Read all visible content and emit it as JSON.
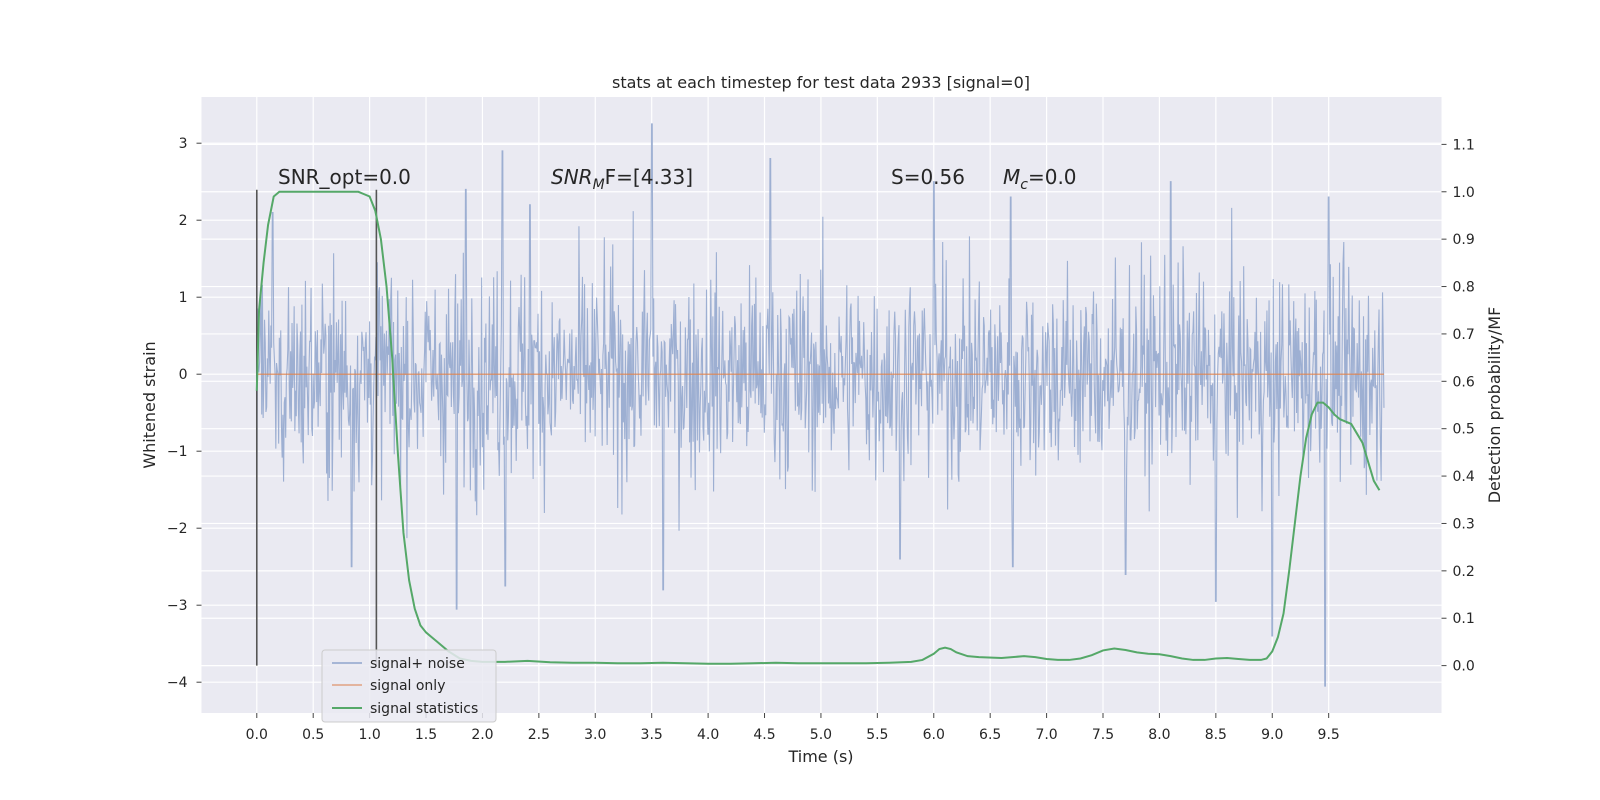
{
  "chart_data": {
    "type": "line",
    "title": "stats at each timestep for test data 2933 [signal=0]",
    "xlabel": "Time (s)",
    "ylabel": "Whitened strain",
    "y2label": "Detection probability/MF",
    "xlim": [
      -0.49,
      10.5
    ],
    "ylim": [
      -4.4,
      3.6
    ],
    "y2lim": [
      -0.1,
      1.2
    ],
    "xticks": [
      "0.0",
      "0.5",
      "1.0",
      "1.5",
      "2.0",
      "2.5",
      "3.0",
      "3.5",
      "4.0",
      "4.5",
      "5.0",
      "5.5",
      "6.0",
      "6.5",
      "7.0",
      "7.5",
      "8.0",
      "8.5",
      "9.0",
      "9.5"
    ],
    "yticks": [
      "3",
      "2",
      "1",
      "0",
      "−1",
      "−2",
      "−3",
      "−4"
    ],
    "y2ticks": [
      "1.1",
      "1.0",
      "0.9",
      "0.8",
      "0.7",
      "0.6",
      "0.5",
      "0.4",
      "0.3",
      "0.2",
      "0.1",
      "0.0"
    ],
    "grid": true,
    "legend_position": "lower-left",
    "annotations": {
      "snr_opt": "SNR_opt=0.0",
      "snr_mf_main": "SNR",
      "snr_mf_sub": "M",
      "snr_mf_tail": "F=[4.33]",
      "s_value": "S=0.56",
      "mc_main": "M",
      "mc_sub": "c",
      "mc_tail": "=0.0"
    },
    "vlines": [
      0.0,
      1.06
    ],
    "series": [
      {
        "name": "signal+ noise",
        "color": "#8fa5cd",
        "note_type": "noise",
        "x_range": [
          0.0,
          9.99
        ],
        "noise_envelope_peaks": [
          {
            "x": 0.14,
            "y": 2.1
          },
          {
            "x": 1.85,
            "y": 2.4
          },
          {
            "x": 2.18,
            "y": 2.9
          },
          {
            "x": 2.42,
            "y": 2.2
          },
          {
            "x": 3.5,
            "y": 3.25
          },
          {
            "x": 4.55,
            "y": 2.8
          },
          {
            "x": 6.0,
            "y": 2.5
          },
          {
            "x": 6.68,
            "y": 2.3
          },
          {
            "x": 8.1,
            "y": 2.5
          },
          {
            "x": 9.0,
            "y": 2.6
          },
          {
            "x": 9.5,
            "y": 2.3
          }
        ],
        "noise_envelope_troughs": [
          {
            "x": 0.0,
            "y": -2.2
          },
          {
            "x": 0.84,
            "y": -2.5
          },
          {
            "x": 1.77,
            "y": -3.05
          },
          {
            "x": 2.2,
            "y": -2.75
          },
          {
            "x": 3.6,
            "y": -2.8
          },
          {
            "x": 5.7,
            "y": -2.4
          },
          {
            "x": 6.7,
            "y": -2.5
          },
          {
            "x": 7.7,
            "y": -2.6
          },
          {
            "x": 8.5,
            "y": -2.95
          },
          {
            "x": 9.0,
            "y": -3.4
          },
          {
            "x": 9.47,
            "y": -4.05
          }
        ]
      },
      {
        "name": "signal only",
        "color": "#dd8452",
        "x": [
          0.0,
          9.99
        ],
        "y": [
          0.0,
          0.0
        ]
      },
      {
        "name": "signal statistics",
        "color": "#55a868",
        "axis": "right",
        "x": [
          0.0,
          0.02,
          0.06,
          0.1,
          0.15,
          0.2,
          0.25,
          0.3,
          0.4,
          0.5,
          0.6,
          0.7,
          0.8,
          0.9,
          0.95,
          1.0,
          1.05,
          1.1,
          1.15,
          1.2,
          1.25,
          1.3,
          1.35,
          1.4,
          1.45,
          1.5,
          1.6,
          1.7,
          1.8,
          1.9,
          2.0,
          2.2,
          2.4,
          2.6,
          2.8,
          3.0,
          3.2,
          3.4,
          3.6,
          3.8,
          4.0,
          4.2,
          4.4,
          4.6,
          4.8,
          5.0,
          5.2,
          5.4,
          5.6,
          5.8,
          5.9,
          6.0,
          6.05,
          6.1,
          6.15,
          6.2,
          6.3,
          6.4,
          6.6,
          6.8,
          6.9,
          7.0,
          7.1,
          7.2,
          7.3,
          7.4,
          7.5,
          7.6,
          7.7,
          7.8,
          7.9,
          8.0,
          8.1,
          8.2,
          8.3,
          8.4,
          8.5,
          8.6,
          8.7,
          8.8,
          8.9,
          8.95,
          9.0,
          9.05,
          9.1,
          9.15,
          9.2,
          9.25,
          9.3,
          9.35,
          9.4,
          9.45,
          9.5,
          9.55,
          9.6,
          9.7,
          9.75,
          9.8,
          9.85,
          9.9,
          9.95
        ],
        "y": [
          0.58,
          0.75,
          0.85,
          0.93,
          0.99,
          1.0,
          1.0,
          1.0,
          1.0,
          1.0,
          1.0,
          1.0,
          1.0,
          1.0,
          0.995,
          0.99,
          0.96,
          0.9,
          0.8,
          0.65,
          0.45,
          0.28,
          0.18,
          0.12,
          0.085,
          0.07,
          0.05,
          0.03,
          0.015,
          0.01,
          0.008,
          0.008,
          0.01,
          0.007,
          0.006,
          0.006,
          0.005,
          0.005,
          0.006,
          0.005,
          0.004,
          0.004,
          0.005,
          0.006,
          0.005,
          0.005,
          0.005,
          0.005,
          0.006,
          0.008,
          0.012,
          0.025,
          0.035,
          0.038,
          0.035,
          0.028,
          0.02,
          0.018,
          0.016,
          0.02,
          0.018,
          0.014,
          0.012,
          0.012,
          0.015,
          0.022,
          0.032,
          0.036,
          0.033,
          0.028,
          0.025,
          0.024,
          0.02,
          0.015,
          0.012,
          0.012,
          0.015,
          0.016,
          0.014,
          0.012,
          0.012,
          0.015,
          0.03,
          0.06,
          0.11,
          0.2,
          0.3,
          0.4,
          0.48,
          0.53,
          0.555,
          0.555,
          0.545,
          0.53,
          0.52,
          0.51,
          0.49,
          0.47,
          0.43,
          0.39,
          0.37
        ]
      }
    ]
  }
}
